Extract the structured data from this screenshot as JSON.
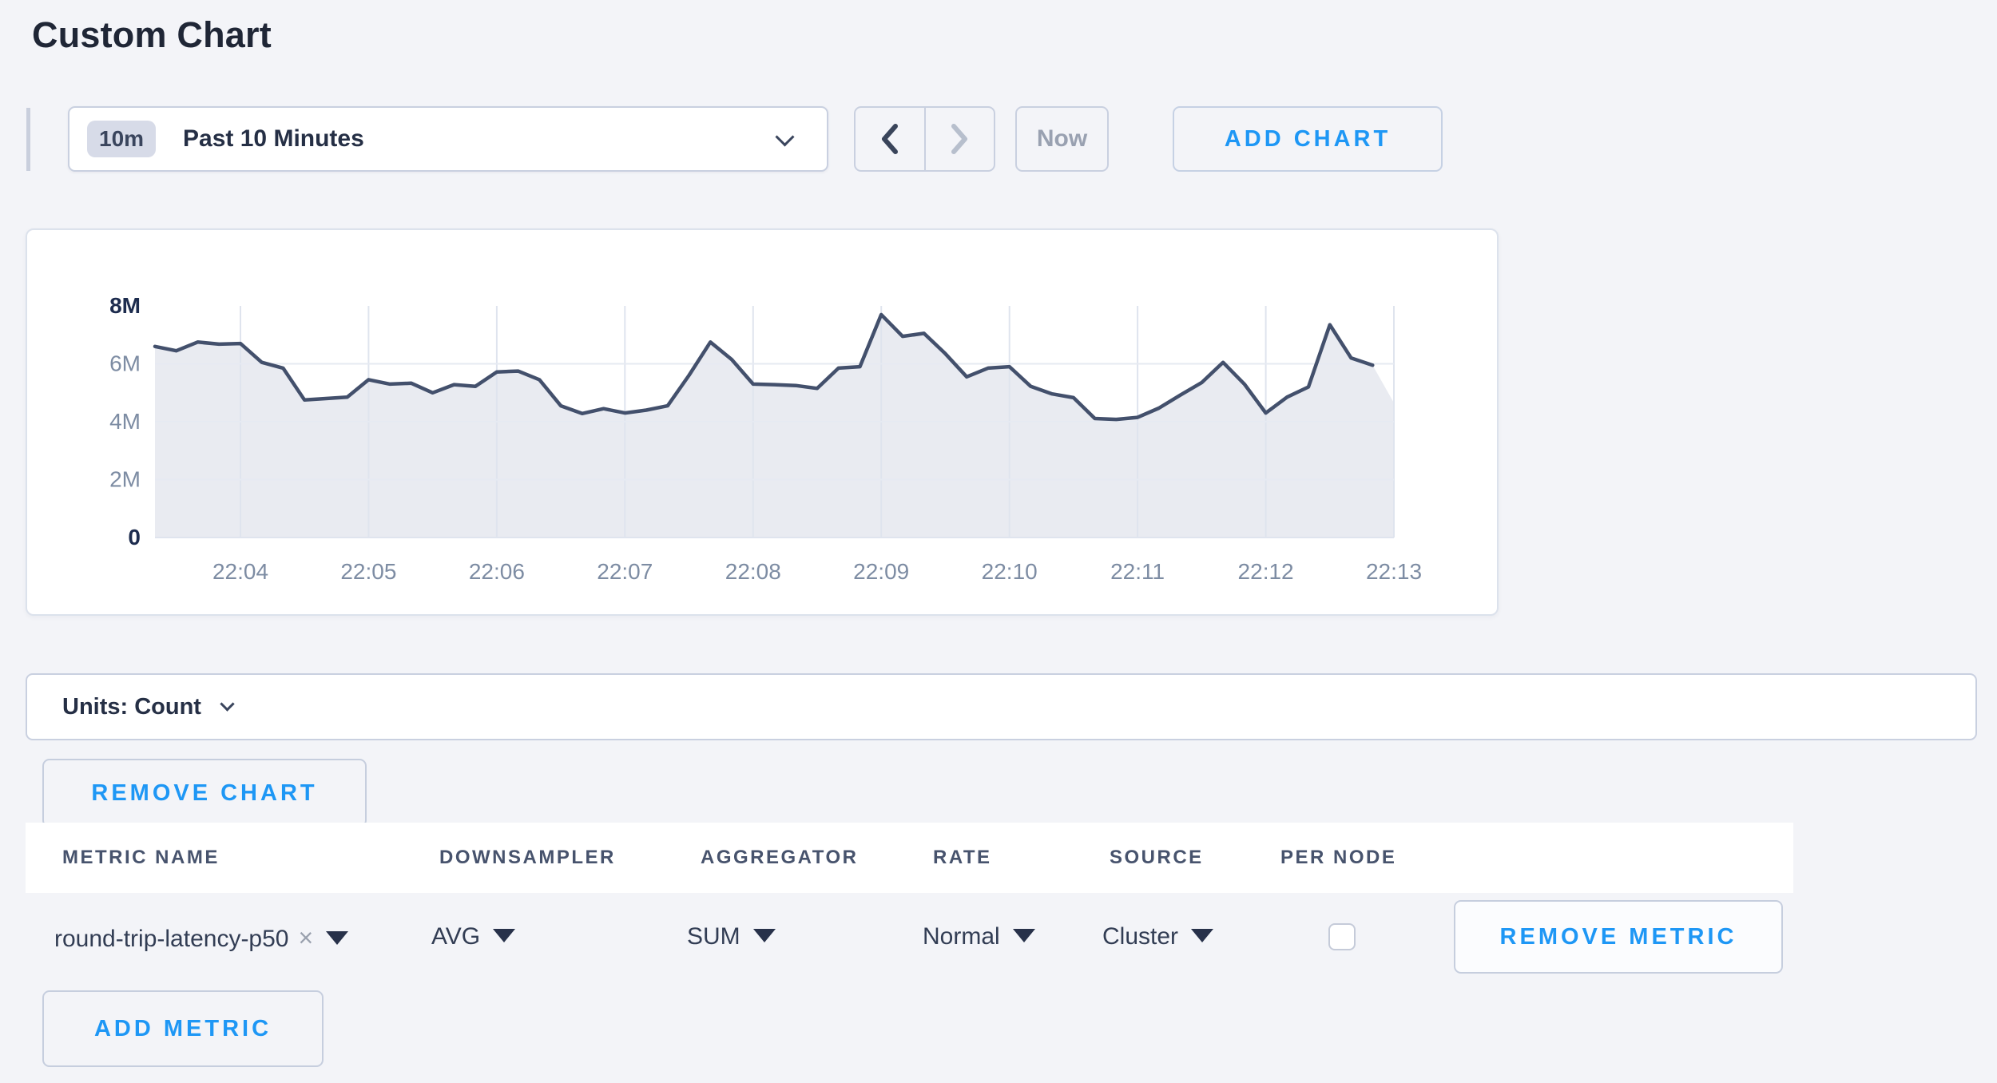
{
  "page": {
    "title": "Custom Chart"
  },
  "toolbar": {
    "time_badge": "10m",
    "time_label": "Past 10 Minutes",
    "now_label": "Now",
    "add_chart_label": "ADD CHART"
  },
  "chart_data": {
    "type": "area",
    "title": "",
    "series_name": "round-trip-latency-p50",
    "x_start": "22:03:20",
    "x_interval_seconds": 10,
    "x_tick_labels": [
      "22:04",
      "22:05",
      "22:06",
      "22:07",
      "22:08",
      "22:09",
      "22:10",
      "22:11",
      "22:12",
      "22:13"
    ],
    "y_ticks_millions": [
      0,
      2,
      4,
      6,
      8
    ],
    "y_tick_labels": [
      "0",
      "2M",
      "4M",
      "6M",
      "8M"
    ],
    "ylim_millions": [
      0,
      8
    ],
    "grid": true,
    "legend": "none",
    "values_millions": [
      6.6,
      6.45,
      6.75,
      6.68,
      6.7,
      6.05,
      5.85,
      4.75,
      4.8,
      4.85,
      5.45,
      5.3,
      5.33,
      5.0,
      5.28,
      5.22,
      5.72,
      5.75,
      5.45,
      4.55,
      4.28,
      4.45,
      4.3,
      4.4,
      4.55,
      5.6,
      6.75,
      6.15,
      5.3,
      5.28,
      5.25,
      5.15,
      5.85,
      5.9,
      7.7,
      6.95,
      7.05,
      6.35,
      5.55,
      5.85,
      5.9,
      5.22,
      4.96,
      4.83,
      4.11,
      4.08,
      4.15,
      4.47,
      4.92,
      5.35,
      6.05,
      5.3,
      4.3,
      4.85,
      5.2,
      7.35,
      6.2,
      5.95,
      4.65
    ],
    "line_color": "#43506c",
    "fill_color": "#e9ebf1",
    "grid_color": "#dfe4ee",
    "tick_color": "#7d8ca3",
    "bold_tick_color": "#1d2c4e"
  },
  "units_bar": {
    "label": "Units: Count"
  },
  "buttons": {
    "remove_chart": "REMOVE CHART",
    "remove_metric": "REMOVE METRIC",
    "add_metric": "ADD METRIC"
  },
  "table": {
    "headers": [
      "METRIC NAME",
      "DOWNSAMPLER",
      "AGGREGATOR",
      "RATE",
      "SOURCE",
      "PER NODE"
    ],
    "row": {
      "metric_name": "round-trip-latency-p50",
      "downsampler": "AVG",
      "aggregator": "SUM",
      "rate": "Normal",
      "source": "Cluster",
      "per_node_checked": false
    }
  },
  "icons": {
    "close": "×"
  }
}
